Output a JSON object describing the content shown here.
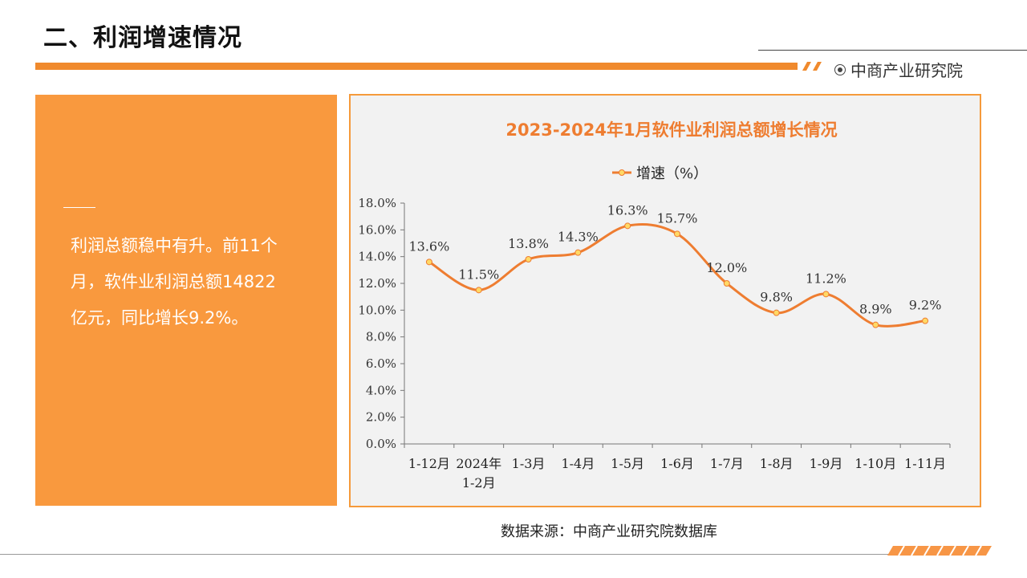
{
  "header": {
    "title": "二、利润增速情况",
    "brand": "中商产业研究院",
    "accent_color": "#f08a2d"
  },
  "panel": {
    "text": "利润总额稳中有升。前11个月，软件业利润总额14822亿元，同比增长9.2%。",
    "background_color": "#f9993e"
  },
  "chart_data": {
    "type": "line",
    "title": "2023-2024年1月软件业利润总额增长情况",
    "categories": [
      "1-12月",
      "2024年1-2月",
      "1-3月",
      "1-4月",
      "1-5月",
      "1-6月",
      "1-7月",
      "1-8月",
      "1-9月",
      "1-10月",
      "1-11月"
    ],
    "category_lines": [
      [
        "1-12月"
      ],
      [
        "2024年",
        "1-2月"
      ],
      [
        "1-3月"
      ],
      [
        "1-4月"
      ],
      [
        "1-5月"
      ],
      [
        "1-6月"
      ],
      [
        "1-7月"
      ],
      [
        "1-8月"
      ],
      [
        "1-9月"
      ],
      [
        "1-10月"
      ],
      [
        "1-11月"
      ]
    ],
    "series": [
      {
        "name": "增速（%）",
        "values": [
          13.6,
          11.5,
          13.8,
          14.3,
          16.3,
          15.7,
          12.0,
          9.8,
          11.2,
          8.9,
          9.2
        ],
        "labels": [
          "13.6%",
          "11.5%",
          "13.8%",
          "14.3%",
          "16.3%",
          "15.7%",
          "12.0%",
          "9.8%",
          "11.2%",
          "8.9%",
          "9.2%"
        ],
        "line_color": "#ee7d31",
        "marker_color": "#ffd966"
      }
    ],
    "yticks": [
      "0.0%",
      "2.0%",
      "4.0%",
      "6.0%",
      "8.0%",
      "10.0%",
      "12.0%",
      "14.0%",
      "16.0%",
      "18.0%"
    ],
    "ylim": [
      0,
      18
    ],
    "legend_position": "top",
    "grid": false,
    "smooth": true,
    "title_color": "#ee7d31"
  },
  "source": "数据来源：中商产业研究院数据库"
}
